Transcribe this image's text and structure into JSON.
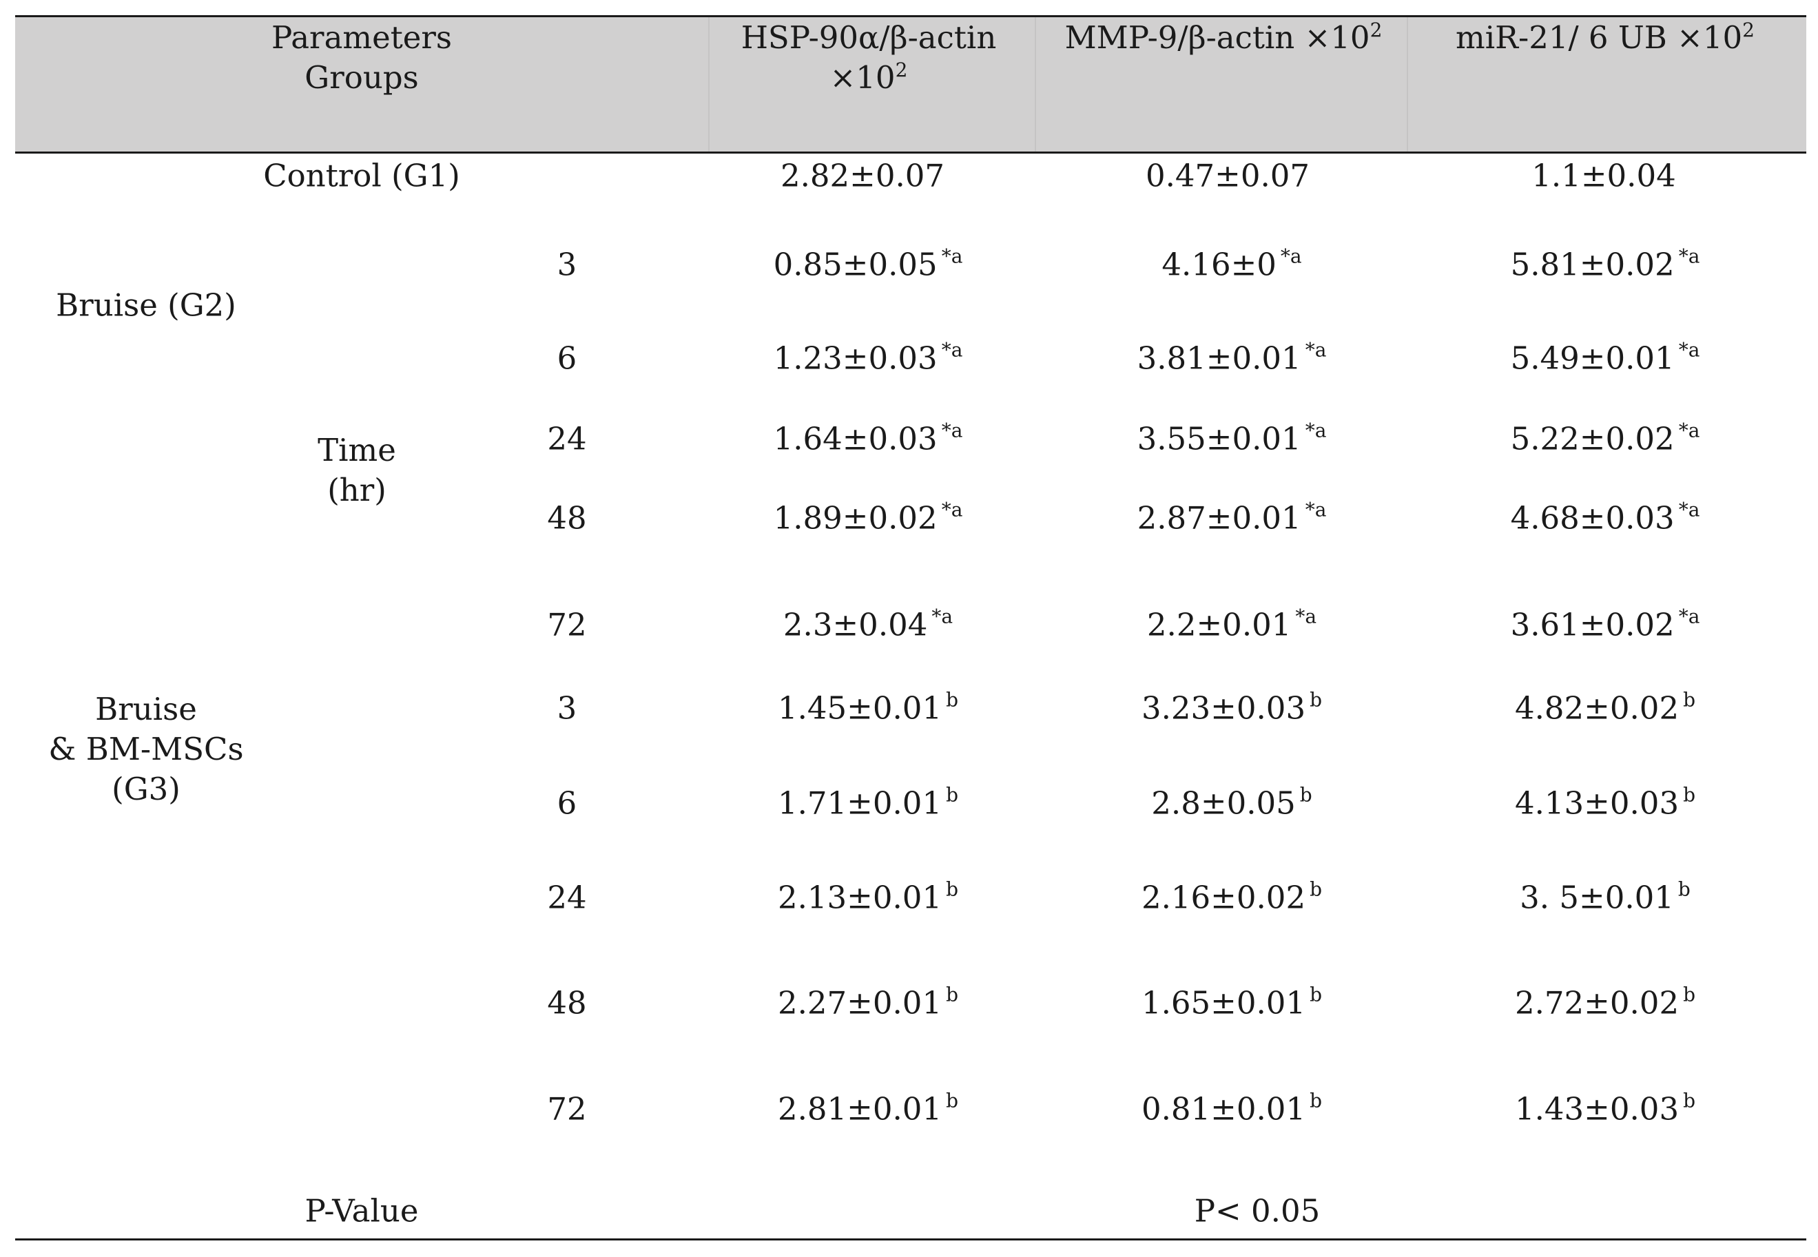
{
  "header": {
    "parameters_label": "Parameters",
    "groups_label": "Groups",
    "col_hsp_line1": "HSP-90α/β-actin",
    "col_hsp_line2": "×10",
    "col_mmp": "MMP-9/β-actin ×10",
    "col_mir": "miR-21/ 6 UB ×10",
    "exponent": "2"
  },
  "control": {
    "label": "Control (G1)",
    "hsp": "2.82±0.07",
    "mmp": "0.47±0.07",
    "mir": "1.1±0.04"
  },
  "groups": {
    "bruise": "Bruise (G2)",
    "bm_line1": "Bruise",
    "bm_line2": "& BM-MSCs",
    "bm_line3": "(G3)",
    "time_line1": "Time",
    "time_line2": "(hr)"
  },
  "rows": [
    {
      "time": "3",
      "hsp": "0.85±0.05",
      "hsp_sup": "*a",
      "mmp": "4.16±0",
      "mmp_sup": "*a",
      "mir": "5.81±0.02",
      "mir_sup": "*a"
    },
    {
      "time": "6",
      "hsp": "1.23±0.03",
      "hsp_sup": "*a",
      "mmp": "3.81±0.01",
      "mmp_sup": "*a",
      "mir": "5.49±0.01",
      "mir_sup": "*a"
    },
    {
      "time": "24",
      "hsp": "1.64±0.03",
      "hsp_sup": "*a",
      "mmp": "3.55±0.01",
      "mmp_sup": "*a",
      "mir": "5.22±0.02",
      "mir_sup": "*a"
    },
    {
      "time": "48",
      "hsp": "1.89±0.02",
      "hsp_sup": "*a",
      "mmp": "2.87±0.01",
      "mmp_sup": "*a",
      "mir": "4.68±0.03",
      "mir_sup": "*a"
    },
    {
      "time": "72",
      "hsp": "2.3±0.04",
      "hsp_sup": "*a",
      "mmp": "2.2±0.01",
      "mmp_sup": "*a",
      "mir": "3.61±0.02",
      "mir_sup": "*a"
    },
    {
      "time": "3",
      "hsp": "1.45±0.01",
      "hsp_sup": "b",
      "mmp": "3.23±0.03",
      "mmp_sup": "b",
      "mir": "4.82±0.02",
      "mir_sup": "b"
    },
    {
      "time": "6",
      "hsp": "1.71±0.01",
      "hsp_sup": "b",
      "mmp": "2.8±0.05",
      "mmp_sup": "b",
      "mir": "4.13±0.03",
      "mir_sup": "b"
    },
    {
      "time": "24",
      "hsp": "2.13±0.01",
      "hsp_sup": "b",
      "mmp": "2.16±0.02",
      "mmp_sup": "b",
      "mir": "3. 5±0.01",
      "mir_sup": "b"
    },
    {
      "time": "48",
      "hsp": "2.27±0.01",
      "hsp_sup": "b",
      "mmp": "1.65±0.01",
      "mmp_sup": "b",
      "mir": "2.72±0.02",
      "mir_sup": "b"
    },
    {
      "time": "72",
      "hsp": "2.81±0.01",
      "hsp_sup": "b",
      "mmp": "0.81±0.01",
      "mmp_sup": "b",
      "mir": "1.43±0.03",
      "mir_sup": "b"
    }
  ],
  "footer": {
    "pvalue_label": "P-Value",
    "pvalue": "P< 0.05"
  }
}
